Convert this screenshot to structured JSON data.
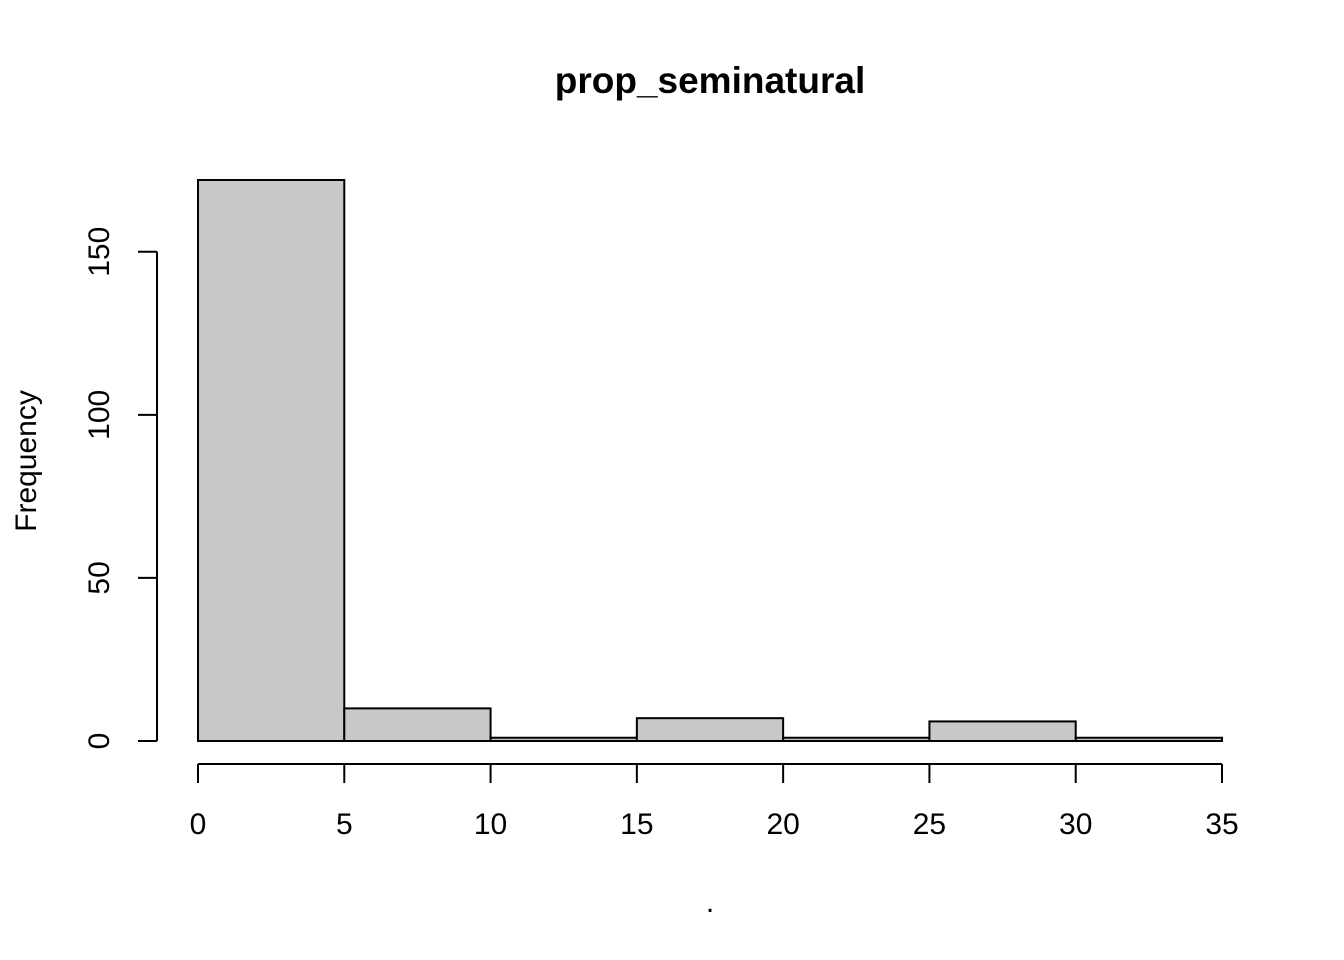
{
  "chart_data": {
    "type": "bar",
    "title": "prop_seminatural",
    "xlabel": ".",
    "ylabel": "Frequency",
    "bins": [
      {
        "start": 0,
        "end": 5,
        "count": 172
      },
      {
        "start": 5,
        "end": 10,
        "count": 10
      },
      {
        "start": 10,
        "end": 15,
        "count": 1
      },
      {
        "start": 15,
        "end": 20,
        "count": 7
      },
      {
        "start": 20,
        "end": 25,
        "count": 1
      },
      {
        "start": 25,
        "end": 30,
        "count": 6
      },
      {
        "start": 30,
        "end": 35,
        "count": 1
      }
    ],
    "xticks": [
      "0",
      "5",
      "10",
      "15",
      "20",
      "25",
      "30",
      "35"
    ],
    "yticks": [
      "0",
      "50",
      "100",
      "150"
    ],
    "xlim": [
      0,
      35
    ],
    "ylim": [
      0,
      172
    ],
    "grid": false,
    "legend": "none",
    "bar_color": "#c8c8c8"
  }
}
